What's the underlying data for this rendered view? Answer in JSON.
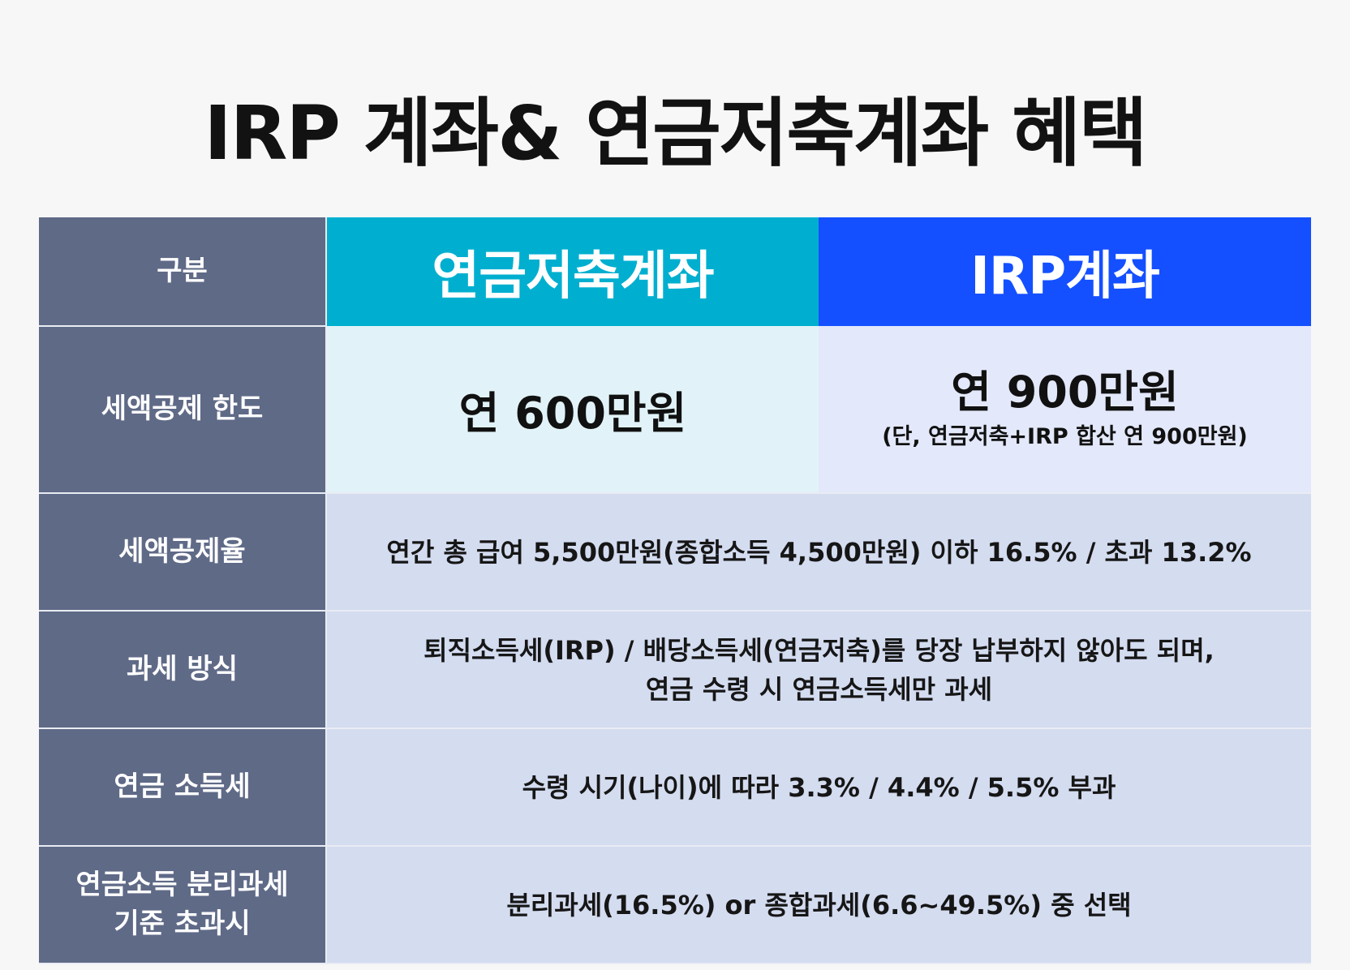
{
  "title": "IRP 계좌& 연금저축계좌 혜택",
  "table": {
    "header": {
      "category": "구분",
      "col_a": "연금저축계좌",
      "col_b": "IRP계좌"
    },
    "rows": [
      {
        "category": "세액공제 한도",
        "col_a": "연 600만원",
        "col_b": "연 900만원",
        "col_b_note": "(단, 연금저축+IRP 합산 연 900만원)"
      },
      {
        "category": "세액공제율",
        "value": "연간 총 급여 5,500만원(종합소득 4,500만원) 이하 16.5% / 초과 13.2%"
      },
      {
        "category": "과세 방식",
        "value_line1": "퇴직소득세(IRP) / 배당소득세(연금저축)를 당장 납부하지 않아도 되며,",
        "value_line2": "연금 수령 시 연금소득세만 과세"
      },
      {
        "category": "연금 소득세",
        "value": "수령 시기(나이)에 따라 3.3% / 4.4% / 5.5% 부과"
      },
      {
        "category_line1": "연금소득 분리과세",
        "category_line2": "기준 초과시",
        "value": "분리과세(16.5%) or 종합과세(6.6~49.5%) 중 선택"
      }
    ]
  }
}
